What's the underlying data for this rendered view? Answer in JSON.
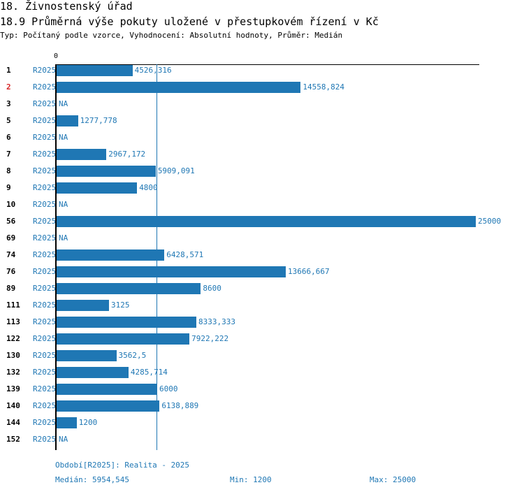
{
  "header": {
    "title": "18. Živnostenský úřad",
    "subtitle": "18.9 Průměrná výše pokuty uložené v přestupkovém řízení v Kč",
    "meta": "Typ: Počítaný podle vzorce, Vyhodnocení: Absolutní hodnoty, Průměr: Medián"
  },
  "chart_data": {
    "type": "bar",
    "orientation": "horizontal",
    "axis_zero_label": "0",
    "xlim": [
      0,
      25000
    ],
    "median": 5954.545,
    "series_name": "R2025",
    "highlight_color": "#d62728",
    "bar_color": "#1f77b4",
    "rows": [
      {
        "label": "1",
        "series": "R2025",
        "value": 4526.316,
        "value_label": "4526,316",
        "highlight": false
      },
      {
        "label": "2",
        "series": "R2025",
        "value": 14558.824,
        "value_label": "14558,824",
        "highlight": true
      },
      {
        "label": "3",
        "series": "R2025",
        "value": null,
        "value_label": "NA",
        "highlight": false
      },
      {
        "label": "5",
        "series": "R2025",
        "value": 1277.778,
        "value_label": "1277,778",
        "highlight": false
      },
      {
        "label": "6",
        "series": "R2025",
        "value": null,
        "value_label": "NA",
        "highlight": false
      },
      {
        "label": "7",
        "series": "R2025",
        "value": 2967.172,
        "value_label": "2967,172",
        "highlight": false
      },
      {
        "label": "8",
        "series": "R2025",
        "value": 5909.091,
        "value_label": "5909,091",
        "highlight": false
      },
      {
        "label": "9",
        "series": "R2025",
        "value": 4800,
        "value_label": "4800",
        "highlight": false
      },
      {
        "label": "10",
        "series": "R2025",
        "value": null,
        "value_label": "NA",
        "highlight": false
      },
      {
        "label": "56",
        "series": "R2025",
        "value": 25000,
        "value_label": "25000",
        "highlight": false
      },
      {
        "label": "69",
        "series": "R2025",
        "value": null,
        "value_label": "NA",
        "highlight": false
      },
      {
        "label": "74",
        "series": "R2025",
        "value": 6428.571,
        "value_label": "6428,571",
        "highlight": false
      },
      {
        "label": "76",
        "series": "R2025",
        "value": 13666.667,
        "value_label": "13666,667",
        "highlight": false
      },
      {
        "label": "89",
        "series": "R2025",
        "value": 8600,
        "value_label": "8600",
        "highlight": false
      },
      {
        "label": "111",
        "series": "R2025",
        "value": 3125,
        "value_label": "3125",
        "highlight": false
      },
      {
        "label": "113",
        "series": "R2025",
        "value": 8333.333,
        "value_label": "8333,333",
        "highlight": false
      },
      {
        "label": "122",
        "series": "R2025",
        "value": 7922.222,
        "value_label": "7922,222",
        "highlight": false
      },
      {
        "label": "130",
        "series": "R2025",
        "value": 3562.5,
        "value_label": "3562,5",
        "highlight": false
      },
      {
        "label": "132",
        "series": "R2025",
        "value": 4285.714,
        "value_label": "4285,714",
        "highlight": false
      },
      {
        "label": "139",
        "series": "R2025",
        "value": 6000,
        "value_label": "6000",
        "highlight": false
      },
      {
        "label": "140",
        "series": "R2025",
        "value": 6138.889,
        "value_label": "6138,889",
        "highlight": false
      },
      {
        "label": "144",
        "series": "R2025",
        "value": 1200,
        "value_label": "1200",
        "highlight": false
      },
      {
        "label": "152",
        "series": "R2025",
        "value": null,
        "value_label": "NA",
        "highlight": false
      }
    ]
  },
  "footer": {
    "period": "Období[R2025]: Realita - 2025",
    "median": "Medián: 5954,545",
    "min": "Min: 1200",
    "max": "Max: 25000"
  }
}
